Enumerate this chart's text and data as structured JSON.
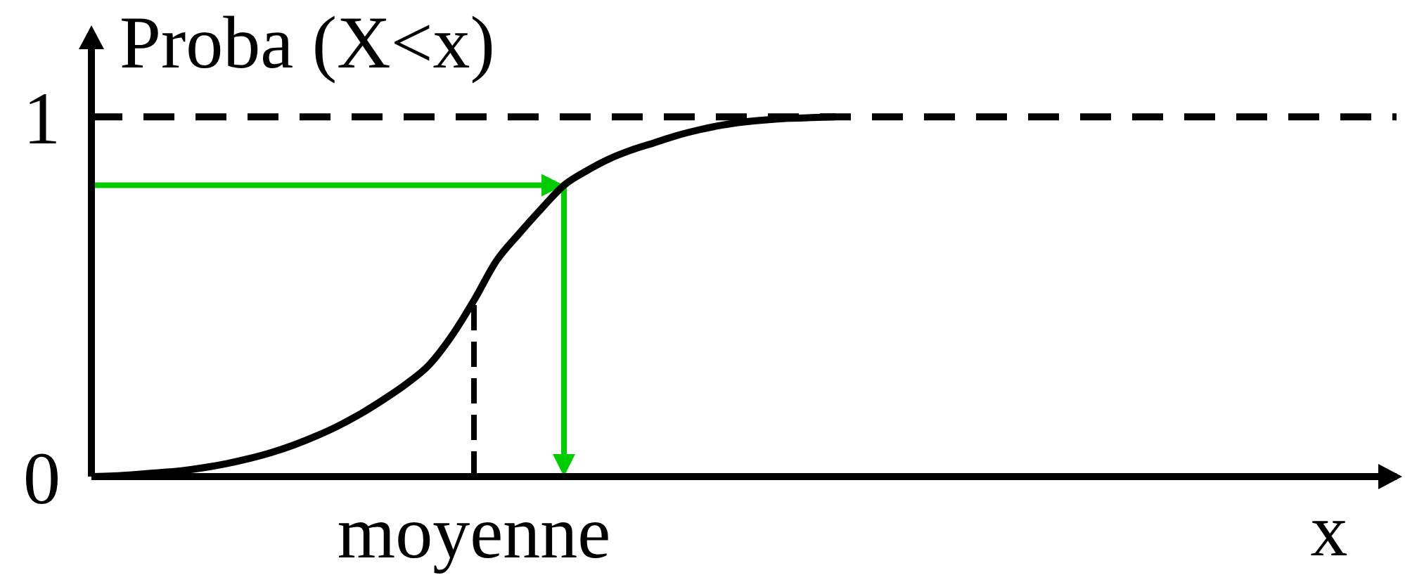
{
  "chart_data": {
    "type": "line",
    "ylabel": "Proba (X<x)",
    "xlabel": "x",
    "categories": [
      null,
      null,
      null,
      null,
      null,
      null,
      null,
      null,
      null,
      null,
      null,
      null,
      null,
      null,
      null,
      null,
      null,
      "moyenne",
      null,
      null,
      null,
      null,
      null,
      null,
      null,
      null,
      null,
      null,
      null,
      null,
      null,
      null,
      null,
      null,
      null,
      null,
      null,
      null,
      null,
      null,
      null,
      null,
      null,
      null,
      null,
      null,
      null,
      null,
      null,
      null,
      null,
      null,
      null,
      null,
      null,
      null,
      null,
      null,
      null
    ],
    "series": [
      {
        "color": "#000000",
        "values": [
          0,
          0.002,
          0.006,
          0.011,
          0.016,
          0.025,
          0.036,
          0.05,
          0.067,
          0.088,
          0.113,
          0.142,
          0.176,
          0.215,
          0.258,
          0.31,
          0.39,
          0.49,
          0.6,
          0.675,
          0.745,
          0.81,
          0.85,
          0.883,
          0.908,
          0.928,
          0.948,
          0.964,
          0.977,
          0.986,
          0.992,
          0.996,
          0.998,
          1,
          null,
          null,
          null,
          null,
          null,
          null,
          null,
          null,
          null,
          null,
          null,
          null,
          null,
          null,
          null,
          null,
          null,
          null,
          null,
          null,
          null,
          null,
          null,
          null,
          null
        ]
      }
    ],
    "ylim": [
      0,
      1.2
    ],
    "yticks": [
      0,
      1
    ],
    "marker": "none",
    "ref_lines": [
      {
        "axis": "y",
        "value": 1,
        "color": "#000000",
        "line_style": "dashed"
      },
      {
        "axis": "x",
        "value": "moyenne",
        "color": "#000000",
        "line_style": "dashed"
      },
      {
        "axis": "y",
        "value": 0.81,
        "color": "#00cc00",
        "line_style": "solid"
      }
    ]
  }
}
